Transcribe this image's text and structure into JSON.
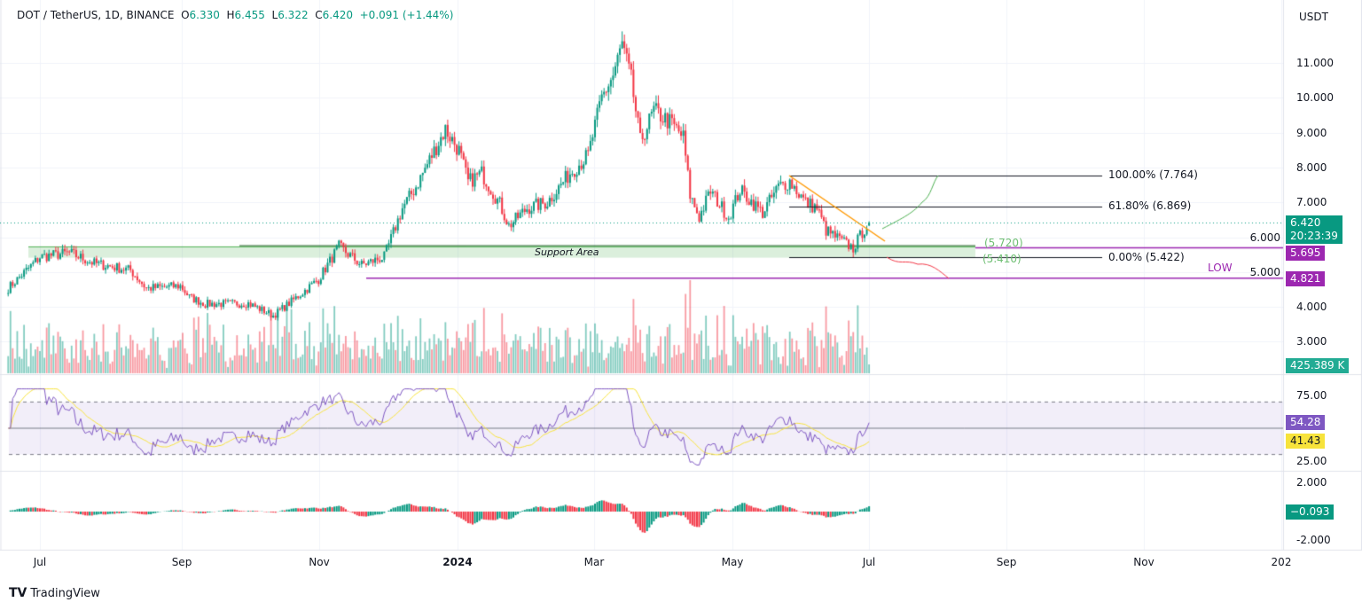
{
  "header": {
    "symbol": "DOT / TetherUS, 1D, BINANCE",
    "open_label": "O",
    "open": "6.330",
    "high_label": "H",
    "high": "6.455",
    "low_label": "L",
    "low": "6.322",
    "close_label": "C",
    "close": "6.420",
    "change": "+0.091 (+1.44%)"
  },
  "currency": "USDT",
  "price_ticks": [
    "11.000",
    "10.000",
    "9.000",
    "8.000",
    "7.000",
    "6.000",
    "5.000",
    "4.000",
    "3.000"
  ],
  "rsi_ticks": [
    "75.00",
    "25.00"
  ],
  "osc_ticks": [
    "2.000",
    "-2.000"
  ],
  "date_ticks": [
    "Jul",
    "Sep",
    "Nov",
    "2024",
    "Mar",
    "May",
    "Jul",
    "Sep",
    "Nov",
    "202"
  ],
  "tags": {
    "price": "6.420",
    "countdown": "20:23:39",
    "resistance": "5.695",
    "low": "4.821",
    "volume": "425.389 K",
    "rsi": "54.28",
    "rsi_ma": "41.43",
    "osc": "−0.093"
  },
  "annotations": {
    "support_label": "Support Area",
    "support_top": "(5.720)",
    "support_bottom": "(5.410)",
    "fib_100": "100.00% (7.764)",
    "fib_618": "61.80% (6.869)",
    "fib_0": "0.00% (5.422)",
    "low_label": "LOW"
  },
  "colors": {
    "up": "#089981",
    "down": "#f23645",
    "purple": "#9c27b0",
    "rsi": "#7e57c2",
    "rsi_ma": "#f7e33b",
    "trend": "#ff9800"
  },
  "brand": "TradingView",
  "chart_data": {
    "type": "candlestick",
    "price_close_anchors": [
      [
        "2023-06-17",
        4.53
      ],
      [
        "2023-07-01",
        5.43
      ],
      [
        "2023-07-14",
        5.55
      ],
      [
        "2023-07-25",
        5.25
      ],
      [
        "2023-08-10",
        5.05
      ],
      [
        "2023-08-17",
        4.53
      ],
      [
        "2023-09-01",
        4.6
      ],
      [
        "2023-09-05",
        4.28
      ],
      [
        "2023-09-12",
        4.08
      ],
      [
        "2023-10-01",
        4.1
      ],
      [
        "2023-10-12",
        3.75
      ],
      [
        "2023-10-20",
        4.15
      ],
      [
        "2023-11-01",
        4.79
      ],
      [
        "2023-11-10",
        5.73
      ],
      [
        "2023-11-20",
        5.2
      ],
      [
        "2023-11-30",
        5.43
      ],
      [
        "2023-12-08",
        6.83
      ],
      [
        "2023-12-14",
        7.45
      ],
      [
        "2023-12-20",
        8.22
      ],
      [
        "2023-12-27",
        9.1
      ],
      [
        "2024-01-02",
        8.48
      ],
      [
        "2024-01-06",
        7.58
      ],
      [
        "2024-01-12",
        7.84
      ],
      [
        "2024-01-20",
        6.95
      ],
      [
        "2024-01-24",
        6.32
      ],
      [
        "2024-02-01",
        6.83
      ],
      [
        "2024-02-10",
        7.0
      ],
      [
        "2024-02-20",
        7.84
      ],
      [
        "2024-02-28",
        8.35
      ],
      [
        "2024-03-05",
        10.0
      ],
      [
        "2024-03-10",
        10.64
      ],
      [
        "2024-03-14",
        11.53
      ],
      [
        "2024-03-18",
        10.5
      ],
      [
        "2024-03-22",
        8.74
      ],
      [
        "2024-03-28",
        9.63
      ],
      [
        "2024-04-05",
        9.25
      ],
      [
        "2024-04-10",
        8.86
      ],
      [
        "2024-04-13",
        7.2
      ],
      [
        "2024-04-17",
        6.57
      ],
      [
        "2024-04-22",
        7.32
      ],
      [
        "2024-04-30",
        6.57
      ],
      [
        "2024-05-05",
        7.35
      ],
      [
        "2024-05-15",
        6.7
      ],
      [
        "2024-05-22",
        7.45
      ],
      [
        "2024-05-27",
        7.6
      ],
      [
        "2024-06-03",
        7.0
      ],
      [
        "2024-06-08",
        6.83
      ],
      [
        "2024-06-12",
        6.19
      ],
      [
        "2024-06-18",
        5.93
      ],
      [
        "2024-06-24",
        5.68
      ],
      [
        "2024-06-28",
        6.14
      ],
      [
        "2024-07-01",
        6.42
      ]
    ],
    "price_range": [
      3.0,
      12.0
    ],
    "support_area": [
      5.41,
      5.72
    ],
    "fibonacci": {
      "100": 7.764,
      "61.8": 6.869,
      "0": 5.422
    },
    "horizontal_levels": {
      "resistance": 5.695,
      "low": 4.821
    },
    "rsi_levels": [
      70,
      50,
      30
    ],
    "grid": true
  }
}
